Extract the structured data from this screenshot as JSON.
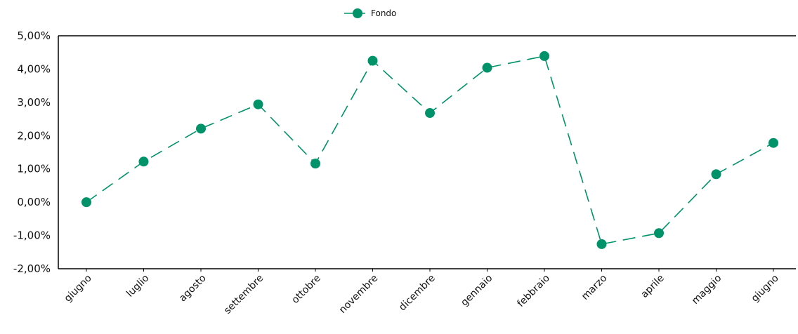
{
  "chart_data": {
    "type": "line",
    "categories": [
      "giugno",
      "luglio",
      "agosto",
      "settembre",
      "ottobre",
      "novembre",
      "dicembre",
      "gennaio",
      "febbraio",
      "marzo",
      "aprile",
      "maggio",
      "giugno"
    ],
    "series": [
      {
        "name": "Fondo",
        "values": [
          0.0,
          1.22,
          2.21,
          2.94,
          1.16,
          4.25,
          2.68,
          4.04,
          4.39,
          -1.26,
          -0.93,
          0.84,
          1.78
        ],
        "color": "#00936a",
        "line_style": "dashed",
        "marker": "circle"
      }
    ],
    "ylim": [
      -2,
      5
    ],
    "yticks": [
      "5,00%",
      "4,00%",
      "3,00%",
      "2,00%",
      "1,00%",
      "0,00%",
      "-1,00%",
      "-2,00%"
    ],
    "ytick_values": [
      5,
      4,
      3,
      2,
      1,
      0,
      -1,
      -2
    ],
    "grid": false,
    "legend": "top-center",
    "title": "",
    "xlabel": "",
    "ylabel": ""
  }
}
